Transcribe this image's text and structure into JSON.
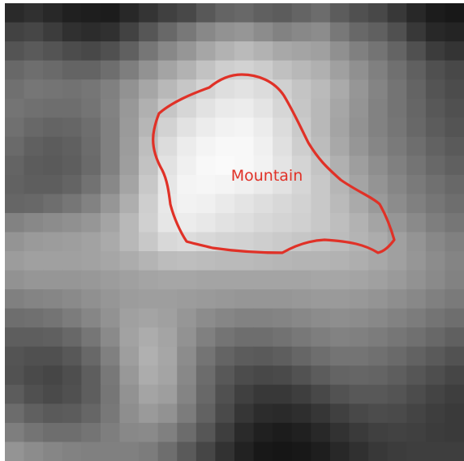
{
  "image": {
    "grid_cols": 24,
    "grid_rows": 24,
    "grayscale_rows": [
      [
        42,
        48,
        40,
        32,
        30,
        28,
        40,
        52,
        64,
        72,
        88,
        100,
        104,
        96,
        92,
        100,
        108,
        92,
        80,
        72,
        56,
        40,
        28,
        24
      ],
      [
        66,
        70,
        60,
        48,
        44,
        48,
        66,
        86,
        104,
        120,
        136,
        146,
        150,
        140,
        130,
        136,
        140,
        120,
        104,
        96,
        80,
        56,
        40,
        36
      ],
      [
        84,
        90,
        84,
        76,
        72,
        80,
        96,
        118,
        136,
        150,
        166,
        178,
        186,
        178,
        168,
        164,
        160,
        144,
        128,
        116,
        100,
        80,
        60,
        52
      ],
      [
        104,
        110,
        106,
        100,
        100,
        110,
        126,
        146,
        164,
        178,
        194,
        206,
        210,
        204,
        192,
        184,
        176,
        160,
        144,
        128,
        112,
        96,
        80,
        72
      ],
      [
        112,
        118,
        116,
        114,
        118,
        128,
        146,
        166,
        184,
        198,
        212,
        222,
        226,
        220,
        208,
        196,
        186,
        170,
        150,
        132,
        116,
        100,
        84,
        76
      ],
      [
        116,
        112,
        110,
        110,
        116,
        130,
        152,
        176,
        198,
        214,
        226,
        234,
        236,
        228,
        214,
        198,
        184,
        166,
        148,
        130,
        116,
        102,
        88,
        80
      ],
      [
        112,
        104,
        100,
        102,
        110,
        128,
        154,
        182,
        210,
        226,
        236,
        242,
        244,
        236,
        220,
        202,
        184,
        164,
        146,
        130,
        118,
        104,
        92,
        84
      ],
      [
        106,
        96,
        92,
        96,
        108,
        128,
        156,
        190,
        220,
        236,
        244,
        248,
        248,
        240,
        224,
        206,
        188,
        168,
        150,
        134,
        122,
        110,
        98,
        90
      ],
      [
        100,
        92,
        90,
        94,
        106,
        128,
        158,
        194,
        226,
        240,
        248,
        250,
        248,
        242,
        228,
        212,
        196,
        176,
        158,
        142,
        128,
        116,
        104,
        96
      ],
      [
        98,
        94,
        94,
        100,
        114,
        136,
        164,
        200,
        230,
        244,
        246,
        244,
        240,
        234,
        226,
        214,
        200,
        182,
        164,
        148,
        134,
        122,
        112,
        104
      ],
      [
        102,
        104,
        110,
        118,
        130,
        150,
        174,
        206,
        232,
        242,
        240,
        234,
        228,
        222,
        216,
        210,
        200,
        186,
        170,
        154,
        140,
        128,
        118,
        110
      ],
      [
        130,
        136,
        140,
        144,
        150,
        164,
        184,
        208,
        230,
        236,
        232,
        226,
        222,
        216,
        212,
        208,
        200,
        190,
        178,
        164,
        150,
        138,
        126,
        118
      ],
      [
        148,
        154,
        156,
        158,
        162,
        170,
        184,
        200,
        216,
        220,
        216,
        212,
        210,
        206,
        202,
        198,
        194,
        188,
        180,
        172,
        160,
        148,
        136,
        128
      ],
      [
        156,
        160,
        160,
        160,
        162,
        166,
        172,
        180,
        188,
        190,
        188,
        186,
        186,
        184,
        182,
        180,
        180,
        178,
        174,
        168,
        160,
        150,
        140,
        132
      ],
      [
        146,
        150,
        150,
        150,
        152,
        156,
        160,
        164,
        166,
        166,
        164,
        164,
        164,
        164,
        164,
        164,
        166,
        166,
        164,
        160,
        154,
        146,
        138,
        130
      ],
      [
        128,
        132,
        134,
        138,
        144,
        150,
        156,
        158,
        158,
        156,
        154,
        152,
        150,
        150,
        150,
        152,
        154,
        154,
        152,
        148,
        142,
        136,
        128,
        122
      ],
      [
        110,
        112,
        116,
        124,
        134,
        146,
        160,
        164,
        160,
        150,
        140,
        134,
        130,
        130,
        132,
        136,
        140,
        142,
        140,
        136,
        130,
        124,
        116,
        110
      ],
      [
        94,
        94,
        96,
        104,
        118,
        138,
        162,
        172,
        164,
        146,
        128,
        116,
        110,
        110,
        114,
        120,
        126,
        130,
        128,
        124,
        118,
        112,
        104,
        96
      ],
      [
        84,
        80,
        80,
        88,
        104,
        128,
        158,
        176,
        166,
        140,
        116,
        100,
        92,
        90,
        94,
        102,
        110,
        116,
        116,
        112,
        106,
        98,
        90,
        82
      ],
      [
        82,
        74,
        70,
        78,
        94,
        120,
        152,
        172,
        164,
        136,
        108,
        88,
        76,
        72,
        74,
        82,
        92,
        100,
        102,
        100,
        94,
        86,
        78,
        70
      ],
      [
        92,
        80,
        74,
        80,
        94,
        118,
        146,
        164,
        158,
        132,
        104,
        80,
        64,
        56,
        56,
        62,
        72,
        82,
        88,
        88,
        84,
        76,
        68,
        62
      ],
      [
        108,
        96,
        90,
        92,
        102,
        120,
        142,
        154,
        146,
        124,
        98,
        74,
        54,
        44,
        42,
        46,
        54,
        64,
        72,
        76,
        74,
        68,
        62,
        58
      ],
      [
        126,
        116,
        110,
        110,
        116,
        126,
        136,
        138,
        128,
        108,
        86,
        62,
        42,
        32,
        28,
        32,
        40,
        50,
        58,
        64,
        66,
        64,
        60,
        58
      ],
      [
        148,
        140,
        134,
        130,
        128,
        128,
        128,
        124,
        110,
        90,
        70,
        50,
        34,
        24,
        22,
        24,
        30,
        40,
        48,
        56,
        60,
        62,
        62,
        62
      ]
    ]
  },
  "annotation": {
    "label": "Mountain",
    "color": "#e03127"
  }
}
